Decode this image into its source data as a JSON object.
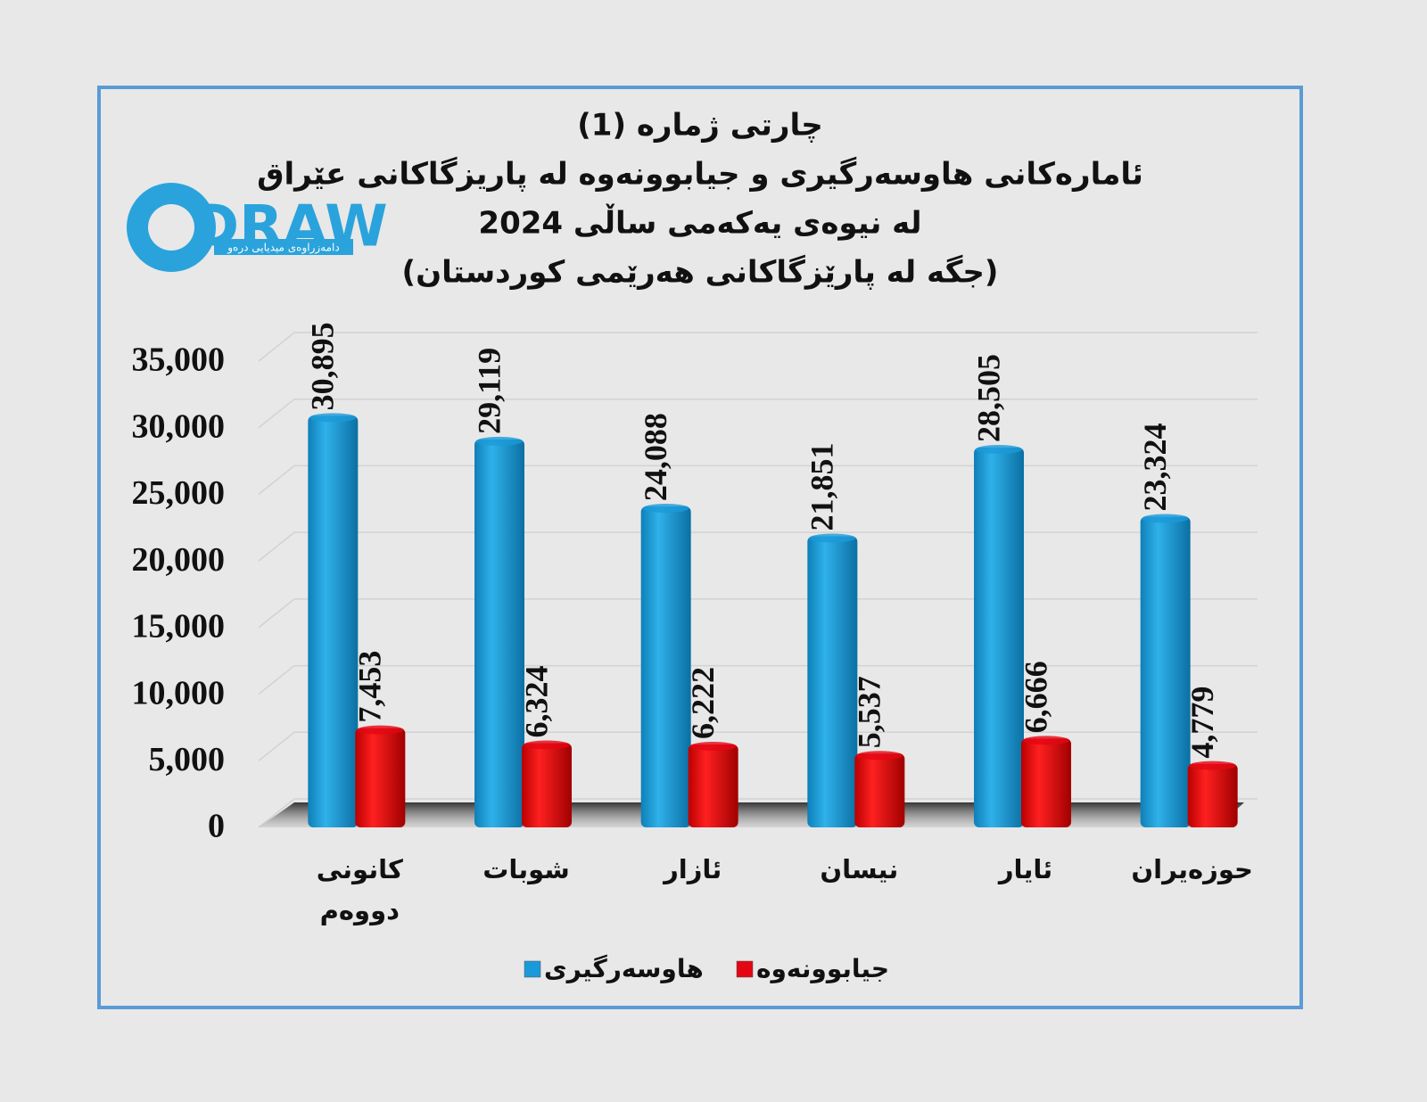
{
  "logo": {
    "name": "DRAW",
    "tagline": "دامەزراوەی میدیایی درەو"
  },
  "chart_data": {
    "type": "bar",
    "title": [
      "چارتی ژمارە (1)",
      "ئامارەکانی هاوسەرگیری و جیابوونەوە لە پاریزگاکانی عێراق",
      "لە نیوەی یەکەمی ساڵی 2024",
      "(جگە لە پارێزگاکانی هەرێمی کوردستان)"
    ],
    "categories": [
      "کانونی دووەم",
      "شوبات",
      "ئازار",
      "نیسان",
      "ئایار",
      "حوزەیران"
    ],
    "series": [
      {
        "name": "هاوسەرگیری",
        "color": "#1a9ad8",
        "values": [
          30895,
          29119,
          24088,
          21851,
          28505,
          23324
        ],
        "value_labels": [
          "30,895",
          "29,119",
          "24,088",
          "21,851",
          "28,505",
          "23,324"
        ]
      },
      {
        "name": "جیابوونەوە",
        "color": "#e30613",
        "values": [
          7453,
          6324,
          6222,
          5537,
          6666,
          4779
        ],
        "value_labels": [
          "7,453",
          "6,324",
          "6,222",
          "5,537",
          "6,666",
          "4,779"
        ]
      }
    ],
    "ylim": [
      0,
      35000
    ],
    "yticks": [
      0,
      {
        "value": 5000,
        "label": "5,000"
      },
      {
        "value": 10000,
        "label": "10,000"
      },
      {
        "value": 15000,
        "label": "15,000"
      },
      {
        "value": 20000,
        "label": "20,000"
      },
      {
        "value": 25000,
        "label": "25,000"
      },
      {
        "value": 30000,
        "label": "30,000"
      },
      {
        "value": 35000,
        "label": "35,000"
      }
    ],
    "grid": true,
    "legend": "bottom"
  }
}
